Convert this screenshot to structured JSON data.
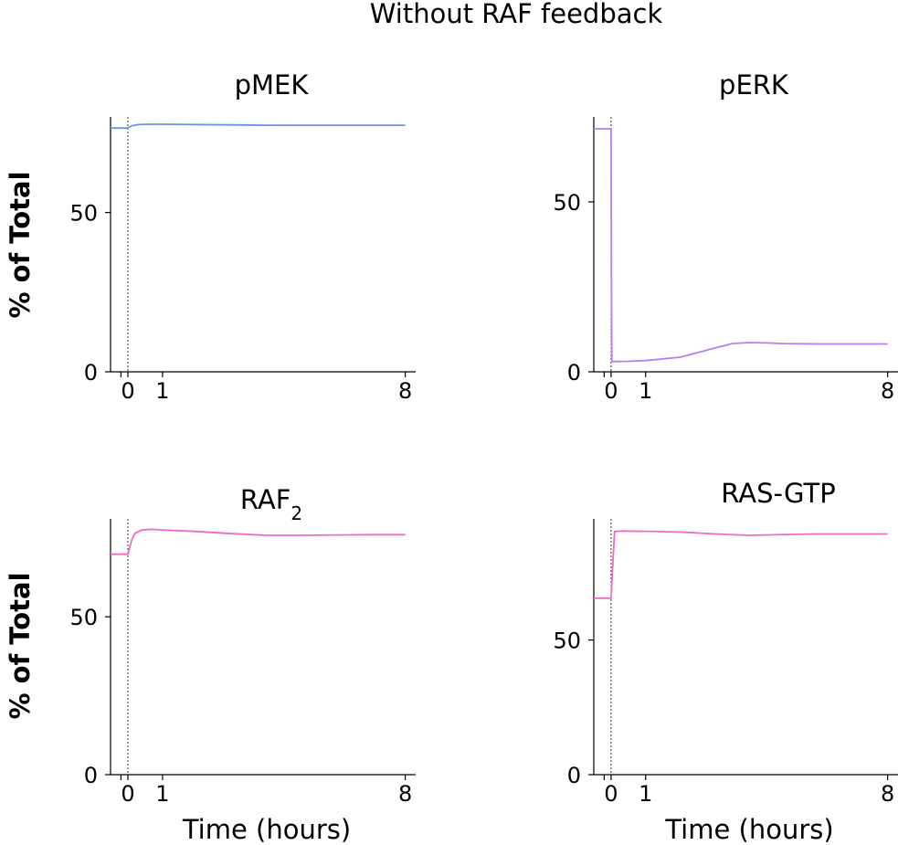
{
  "figure": {
    "suptitle": "Without RAF feedback"
  },
  "chart_data": [
    {
      "type": "line",
      "title": "pMEK",
      "title_sub": "",
      "ylabel": "% of Total",
      "xlabel": "",
      "xlim": [
        -0.5,
        8.3
      ],
      "ylim": [
        0,
        80
      ],
      "xticks": [
        0,
        1,
        8
      ],
      "yticks": [
        0,
        50
      ],
      "treatment_time": 0,
      "series": [
        {
          "color": "#6495ED",
          "x": [
            -0.5,
            0,
            0.1,
            0.3,
            0.6,
            1,
            2,
            3,
            4,
            5,
            6,
            7,
            8
          ],
          "y": [
            76.5,
            76.5,
            77.2,
            77.6,
            77.7,
            77.7,
            77.6,
            77.5,
            77.4,
            77.4,
            77.4,
            77.4,
            77.4
          ]
        }
      ]
    },
    {
      "type": "line",
      "title": "pERK",
      "title_sub": "",
      "ylabel": "",
      "xlabel": "",
      "xlim": [
        -0.5,
        8.3
      ],
      "ylim": [
        0,
        75
      ],
      "xticks": [
        0,
        1,
        8
      ],
      "yticks": [
        0,
        50
      ],
      "treatment_time": 0,
      "series": [
        {
          "color": "#B57EF5",
          "x": [
            -0.5,
            0,
            0.01,
            0.02,
            0.5,
            1,
            2,
            3,
            3.5,
            4,
            4.5,
            5,
            6,
            7,
            8
          ],
          "y": [
            71.5,
            71.5,
            30,
            3.0,
            3.1,
            3.3,
            4.3,
            7.0,
            8.3,
            8.6,
            8.5,
            8.3,
            8.2,
            8.2,
            8.2
          ]
        }
      ]
    },
    {
      "type": "line",
      "title": "RAF",
      "title_sub": "2",
      "ylabel": "% of Total",
      "xlabel": "Time (hours)",
      "xlim": [
        -0.5,
        8.3
      ],
      "ylim": [
        0,
        81
      ],
      "xticks": [
        0,
        1,
        8
      ],
      "yticks": [
        0,
        50
      ],
      "treatment_time": 0,
      "series": [
        {
          "color": "#EE6BC4",
          "x": [
            -0.5,
            0,
            0.1,
            0.2,
            0.4,
            0.7,
            1,
            2,
            3,
            4,
            5,
            6,
            7,
            8
          ],
          "y": [
            69.8,
            69.8,
            74,
            76.4,
            77.5,
            77.7,
            77.5,
            77,
            76.3,
            75.8,
            75.8,
            75.9,
            76,
            76
          ]
        }
      ]
    },
    {
      "type": "line",
      "title": "RAS-GTP",
      "title_sub": "",
      "ylabel": "",
      "xlabel": "Time (hours)",
      "xlim": [
        -0.5,
        8.3
      ],
      "ylim": [
        0,
        95
      ],
      "xticks": [
        0,
        1,
        8
      ],
      "yticks": [
        0,
        50
      ],
      "treatment_time": 0,
      "series": [
        {
          "color": "#EE6BC4",
          "x": [
            -0.5,
            0,
            0.05,
            0.1,
            0.3,
            1,
            2,
            3,
            4,
            5,
            6,
            7,
            8
          ],
          "y": [
            65.5,
            65.5,
            78,
            90.3,
            90.5,
            90.4,
            90.1,
            89.4,
            88.9,
            89.2,
            89.4,
            89.4,
            89.4
          ]
        }
      ]
    }
  ]
}
